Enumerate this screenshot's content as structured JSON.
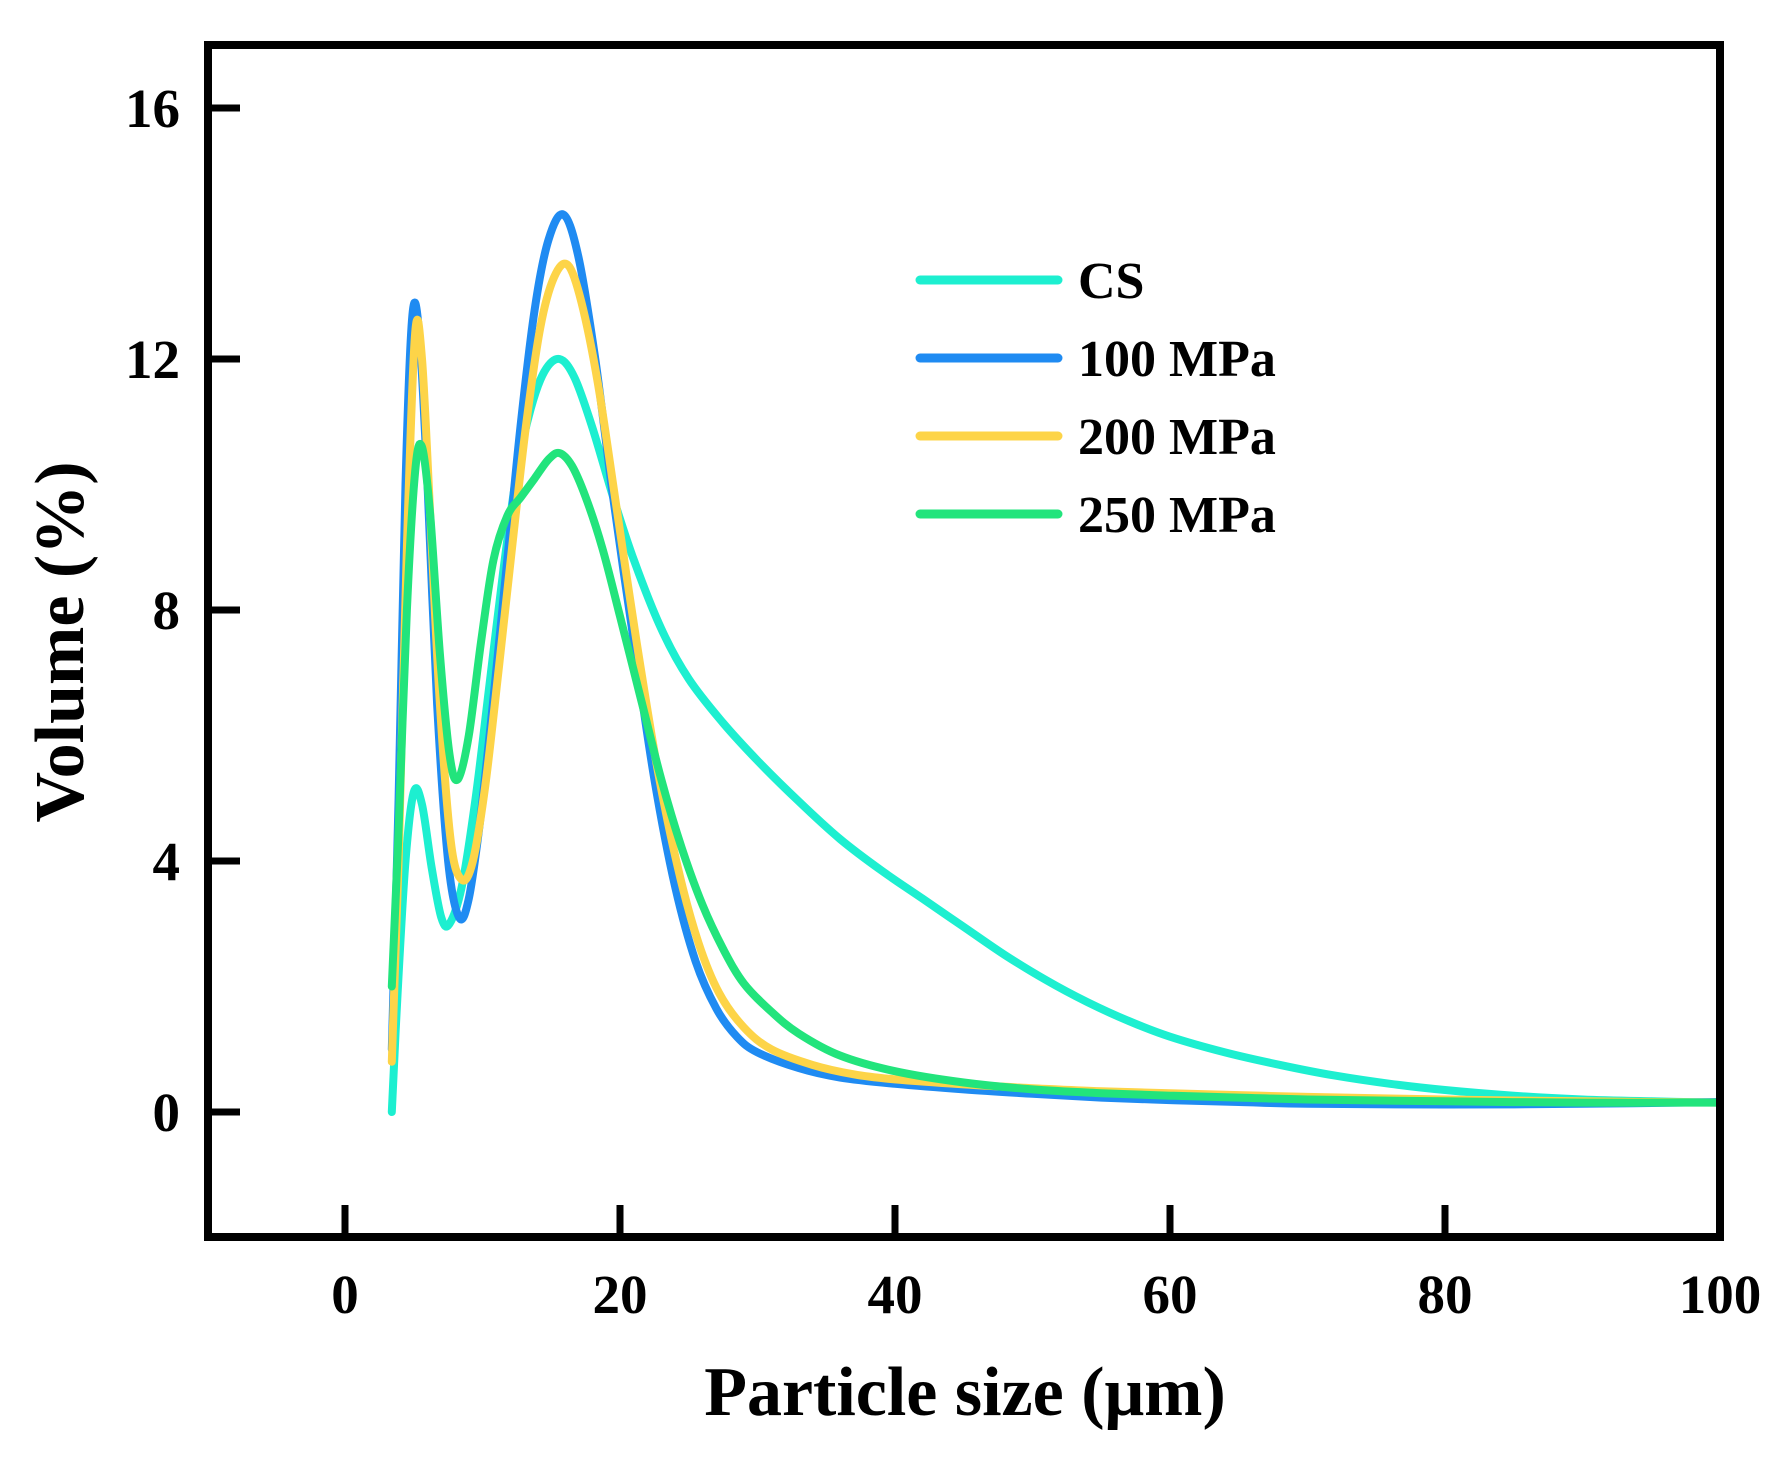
{
  "chart_data": {
    "type": "line",
    "title": "",
    "xlabel": "Particle size (μm)",
    "ylabel": "Volume (%)",
    "xlim": [
      -10,
      100
    ],
    "ylim": [
      -2,
      17
    ],
    "xticks": [
      0,
      20,
      40,
      60,
      80,
      100
    ],
    "yticks": [
      0,
      4,
      8,
      12,
      16
    ],
    "xtick_labels": [
      "0",
      "20",
      "40",
      "60",
      "80",
      "100"
    ],
    "ytick_labels": [
      "0",
      "4",
      "8",
      "12",
      "16"
    ],
    "grid": false,
    "legend_position": "upper-right",
    "series": [
      {
        "name": "CS",
        "color": "#1DEFD0",
        "points": [
          [
            3.4,
            0
          ],
          [
            3.8,
            1.8
          ],
          [
            4.4,
            4.0
          ],
          [
            5.0,
            5.1
          ],
          [
            5.6,
            4.9
          ],
          [
            6.3,
            3.9
          ],
          [
            7.0,
            3.1
          ],
          [
            7.6,
            3.0
          ],
          [
            8.5,
            3.6
          ],
          [
            9.5,
            5.0
          ],
          [
            10.5,
            6.8
          ],
          [
            11.5,
            8.6
          ],
          [
            12.5,
            10.2
          ],
          [
            13.5,
            11.2
          ],
          [
            14.5,
            11.8
          ],
          [
            15.6,
            12.0
          ],
          [
            16.7,
            11.7
          ],
          [
            18.0,
            10.9
          ],
          [
            19.5,
            9.8
          ],
          [
            21.0,
            8.8
          ],
          [
            23.0,
            7.7
          ],
          [
            25.0,
            6.9
          ],
          [
            27.5,
            6.2
          ],
          [
            30.0,
            5.6
          ],
          [
            33.0,
            4.95
          ],
          [
            36.0,
            4.35
          ],
          [
            39.0,
            3.85
          ],
          [
            42.0,
            3.4
          ],
          [
            45.0,
            2.95
          ],
          [
            48.0,
            2.5
          ],
          [
            51.0,
            2.1
          ],
          [
            54.0,
            1.75
          ],
          [
            57.0,
            1.45
          ],
          [
            60.0,
            1.2
          ],
          [
            64.0,
            0.95
          ],
          [
            68.0,
            0.75
          ],
          [
            72.0,
            0.58
          ],
          [
            76.0,
            0.45
          ],
          [
            80.0,
            0.35
          ],
          [
            85.0,
            0.26
          ],
          [
            90.0,
            0.2
          ],
          [
            95.0,
            0.17
          ],
          [
            100.0,
            0.15
          ]
        ]
      },
      {
        "name": "100 MPa",
        "color": "#1F8BF2",
        "points": [
          [
            3.4,
            1.0
          ],
          [
            3.9,
            5.0
          ],
          [
            4.4,
            10.0
          ],
          [
            4.9,
            12.7
          ],
          [
            5.4,
            12.4
          ],
          [
            6.0,
            10.0
          ],
          [
            6.7,
            6.5
          ],
          [
            7.5,
            4.0
          ],
          [
            8.3,
            3.1
          ],
          [
            9.0,
            3.4
          ],
          [
            9.8,
            4.6
          ],
          [
            10.8,
            6.6
          ],
          [
            11.8,
            8.8
          ],
          [
            12.8,
            11.0
          ],
          [
            13.8,
            12.8
          ],
          [
            14.8,
            13.9
          ],
          [
            15.9,
            14.3
          ],
          [
            17.0,
            13.6
          ],
          [
            18.2,
            12.0
          ],
          [
            19.5,
            9.8
          ],
          [
            21.0,
            7.5
          ],
          [
            22.5,
            5.3
          ],
          [
            24.0,
            3.6
          ],
          [
            25.5,
            2.4
          ],
          [
            27.0,
            1.65
          ],
          [
            28.5,
            1.2
          ],
          [
            30.0,
            0.95
          ],
          [
            33.0,
            0.7
          ],
          [
            36.0,
            0.55
          ],
          [
            40.0,
            0.45
          ],
          [
            45.0,
            0.36
          ],
          [
            50.0,
            0.29
          ],
          [
            55.0,
            0.23
          ],
          [
            60.0,
            0.19
          ],
          [
            65.0,
            0.16
          ],
          [
            70.0,
            0.13
          ],
          [
            80.0,
            0.12
          ],
          [
            90.0,
            0.13
          ],
          [
            100.0,
            0.16
          ]
        ]
      },
      {
        "name": "200 MPa",
        "color": "#FDD448",
        "points": [
          [
            3.4,
            0.8
          ],
          [
            3.9,
            4.0
          ],
          [
            4.5,
            9.0
          ],
          [
            5.1,
            12.4
          ],
          [
            5.6,
            12.0
          ],
          [
            6.2,
            9.5
          ],
          [
            6.9,
            6.5
          ],
          [
            7.7,
            4.3
          ],
          [
            8.5,
            3.7
          ],
          [
            9.3,
            4.0
          ],
          [
            10.2,
            5.2
          ],
          [
            11.2,
            7.1
          ],
          [
            12.2,
            9.1
          ],
          [
            13.2,
            11.0
          ],
          [
            14.2,
            12.5
          ],
          [
            15.2,
            13.3
          ],
          [
            16.2,
            13.5
          ],
          [
            17.2,
            12.9
          ],
          [
            18.4,
            11.6
          ],
          [
            19.7,
            9.7
          ],
          [
            21.2,
            7.5
          ],
          [
            22.7,
            5.5
          ],
          [
            24.2,
            3.9
          ],
          [
            25.7,
            2.7
          ],
          [
            27.2,
            1.9
          ],
          [
            29.0,
            1.35
          ],
          [
            31.0,
            1.0
          ],
          [
            34.0,
            0.75
          ],
          [
            37.0,
            0.6
          ],
          [
            40.0,
            0.52
          ],
          [
            45.0,
            0.44
          ],
          [
            50.0,
            0.38
          ],
          [
            55.0,
            0.33
          ],
          [
            60.0,
            0.3
          ],
          [
            65.0,
            0.27
          ],
          [
            70.0,
            0.24
          ],
          [
            80.0,
            0.2
          ],
          [
            90.0,
            0.17
          ],
          [
            100.0,
            0.15
          ]
        ]
      },
      {
        "name": "250 MPa",
        "color": "#22E47C",
        "points": [
          [
            3.4,
            2.0
          ],
          [
            3.9,
            4.5
          ],
          [
            4.5,
            8.0
          ],
          [
            5.1,
            10.2
          ],
          [
            5.6,
            10.6
          ],
          [
            6.2,
            9.5
          ],
          [
            6.9,
            7.3
          ],
          [
            7.6,
            5.7
          ],
          [
            8.2,
            5.3
          ],
          [
            9.0,
            6.0
          ],
          [
            9.9,
            7.5
          ],
          [
            10.8,
            8.8
          ],
          [
            11.8,
            9.5
          ],
          [
            12.8,
            9.8
          ],
          [
            13.8,
            10.1
          ],
          [
            14.8,
            10.4
          ],
          [
            15.6,
            10.5
          ],
          [
            16.5,
            10.3
          ],
          [
            17.5,
            9.8
          ],
          [
            18.7,
            9.0
          ],
          [
            20.0,
            7.9
          ],
          [
            21.5,
            6.6
          ],
          [
            23.0,
            5.3
          ],
          [
            24.5,
            4.2
          ],
          [
            26.0,
            3.3
          ],
          [
            27.5,
            2.6
          ],
          [
            29.0,
            2.05
          ],
          [
            31.0,
            1.6
          ],
          [
            33.0,
            1.25
          ],
          [
            36.0,
            0.9
          ],
          [
            40.0,
            0.65
          ],
          [
            45.0,
            0.47
          ],
          [
            50.0,
            0.36
          ],
          [
            55.0,
            0.3
          ],
          [
            60.0,
            0.26
          ],
          [
            65.0,
            0.23
          ],
          [
            70.0,
            0.2
          ],
          [
            80.0,
            0.17
          ],
          [
            90.0,
            0.15
          ],
          [
            100.0,
            0.15
          ]
        ]
      }
    ]
  }
}
